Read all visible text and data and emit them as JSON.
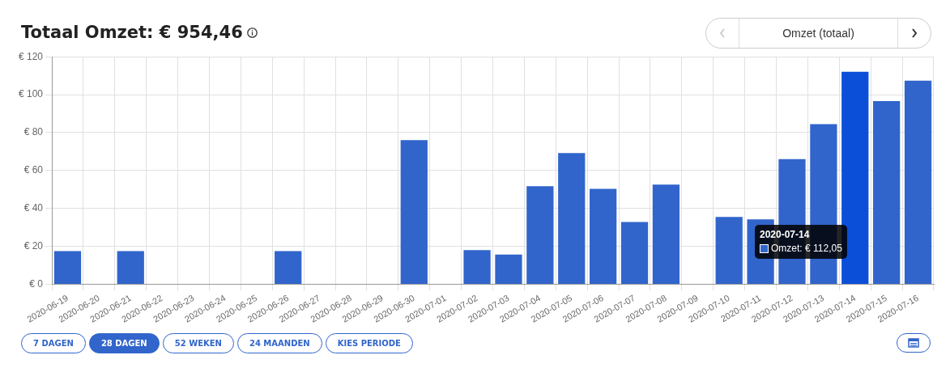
{
  "chart_data": {
    "type": "bar",
    "title": "Totaal Omzet: € 954,46",
    "categories": [
      "2020-06-19",
      "2020-06-20",
      "2020-06-21",
      "2020-06-22",
      "2020-06-23",
      "2020-06-24",
      "2020-06-25",
      "2020-06-26",
      "2020-06-27",
      "2020-06-28",
      "2020-06-29",
      "2020-06-30",
      "2020-07-01",
      "2020-07-02",
      "2020-07-03",
      "2020-07-04",
      "2020-07-05",
      "2020-07-06",
      "2020-07-07",
      "2020-07-08",
      "2020-07-09",
      "2020-07-10",
      "2020-07-11",
      "2020-07-12",
      "2020-07-13",
      "2020-07-14",
      "2020-07-15",
      "2020-07-16"
    ],
    "values": [
      17.5,
      0,
      17.5,
      0,
      0,
      0,
      0,
      17.5,
      0,
      0,
      0,
      76,
      0,
      18,
      15.7,
      51.7,
      69.2,
      50.3,
      32.8,
      52.6,
      0,
      35.5,
      34.2,
      66,
      84.5,
      112.05,
      96.6,
      107.4
    ],
    "colors": [
      "#3165cc",
      "#3165cc",
      "#3165cc",
      "#3165cc",
      "#3165cc",
      "#3165cc",
      "#3165cc",
      "#3165cc",
      "#3165cc",
      "#3165cc",
      "#3165cc",
      "#3165cc",
      "#3165cc",
      "#3165cc",
      "#3165cc",
      "#3165cc",
      "#3165cc",
      "#3165cc",
      "#3165cc",
      "#3165cc",
      "#3165cc",
      "#3165cc",
      "#3165cc",
      "#3165cc",
      "#3165cc",
      "#0b4fd9",
      "#3165cc",
      "#3165cc"
    ],
    "ylim": [
      0,
      120
    ],
    "yticks": [
      {
        "value": 0,
        "label": "€ 0"
      },
      {
        "value": 20,
        "label": "€ 20"
      },
      {
        "value": 40,
        "label": "€ 40"
      },
      {
        "value": 60,
        "label": "€ 60"
      },
      {
        "value": 80,
        "label": "€ 80"
      },
      {
        "value": 100,
        "label": "€ 100"
      },
      {
        "value": 120,
        "label": "€ 120"
      }
    ],
    "grid": true,
    "annotations": [
      "2020-07-14",
      "Omzet: € 112,05",
      "Omzet (totaal)",
      "7 DAGEN",
      "28 DAGEN",
      "52 WEKEN",
      "24 MAANDEN",
      "KIES PERIODE"
    ]
  }
}
